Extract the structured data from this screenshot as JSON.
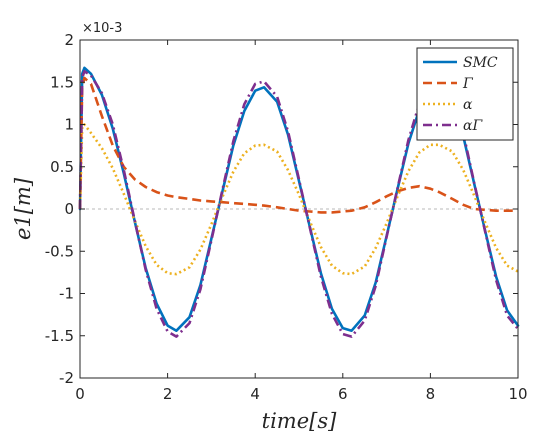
{
  "chart_data": {
    "type": "line",
    "xlabel": "time[s]",
    "ylabel": "e1[m]",
    "xlim": [
      0,
      10
    ],
    "ylim": [
      -2,
      2
    ],
    "y_scale_label": "×10-3",
    "x_ticks": [
      "0",
      "2",
      "4",
      "6",
      "8",
      "10"
    ],
    "y_ticks": [
      "-2",
      "-1.5",
      "-1",
      "-0.5",
      "0",
      "0.5",
      "1",
      "1.5",
      "2"
    ],
    "legend_position": "top-right",
    "reference_line": {
      "y": 0,
      "style": "dashed-gray"
    },
    "x": [
      0,
      0.05,
      0.1,
      0.25,
      0.5,
      0.75,
      1,
      1.25,
      1.5,
      1.75,
      2,
      2.2,
      2.5,
      2.75,
      3,
      3.25,
      3.5,
      3.75,
      4,
      4.2,
      4.5,
      4.75,
      5,
      5.25,
      5.5,
      5.75,
      6,
      6.2,
      6.5,
      6.75,
      7,
      7.25,
      7.5,
      7.75,
      8,
      8.2,
      8.5,
      8.75,
      9,
      9.25,
      9.5,
      9.75,
      10
    ],
    "series": [
      {
        "name": "SMC",
        "color": "#0072BD",
        "dash": "solid",
        "values": [
          0,
          1.6,
          1.67,
          1.6,
          1.35,
          0.95,
          0.42,
          -0.15,
          -0.7,
          -1.12,
          -1.38,
          -1.44,
          -1.28,
          -0.9,
          -0.35,
          0.2,
          0.75,
          1.16,
          1.4,
          1.44,
          1.27,
          0.88,
          0.33,
          -0.22,
          -0.76,
          -1.18,
          -1.41,
          -1.44,
          -1.26,
          -0.87,
          -0.32,
          0.24,
          0.78,
          1.18,
          1.41,
          1.44,
          1.25,
          0.86,
          0.3,
          -0.26,
          -0.8,
          -1.2,
          -1.38
        ]
      },
      {
        "name": "Γ",
        "color": "#D95319",
        "dash": "dashed",
        "values": [
          0,
          1.45,
          1.55,
          1.48,
          1.1,
          0.75,
          0.5,
          0.35,
          0.26,
          0.2,
          0.16,
          0.14,
          0.12,
          0.1,
          0.09,
          0.08,
          0.07,
          0.06,
          0.05,
          0.04,
          0.02,
          0.0,
          -0.02,
          -0.03,
          -0.04,
          -0.04,
          -0.03,
          -0.02,
          0.02,
          0.08,
          0.15,
          0.21,
          0.25,
          0.27,
          0.24,
          0.2,
          0.12,
          0.05,
          0.0,
          -0.01,
          -0.02,
          -0.02,
          -0.02
        ]
      },
      {
        "name": "α",
        "color": "#EDB120",
        "dash": "dotted",
        "values": [
          0,
          0.98,
          1.0,
          0.9,
          0.72,
          0.48,
          0.18,
          -0.14,
          -0.44,
          -0.66,
          -0.76,
          -0.77,
          -0.69,
          -0.48,
          -0.18,
          0.14,
          0.44,
          0.66,
          0.75,
          0.76,
          0.68,
          0.46,
          0.17,
          -0.15,
          -0.45,
          -0.67,
          -0.76,
          -0.77,
          -0.68,
          -0.46,
          -0.17,
          0.15,
          0.45,
          0.67,
          0.76,
          0.76,
          0.68,
          0.46,
          0.16,
          -0.16,
          -0.46,
          -0.67,
          -0.74
        ]
      },
      {
        "name": "αΓ",
        "color": "#7E2F8E",
        "dash": "dashdot",
        "values": [
          0,
          1.55,
          1.63,
          1.58,
          1.37,
          1.0,
          0.46,
          -0.14,
          -0.72,
          -1.18,
          -1.45,
          -1.51,
          -1.35,
          -0.95,
          -0.37,
          0.22,
          0.8,
          1.24,
          1.48,
          1.51,
          1.33,
          0.92,
          0.35,
          -0.23,
          -0.8,
          -1.24,
          -1.48,
          -1.51,
          -1.32,
          -0.91,
          -0.33,
          0.25,
          0.82,
          1.25,
          1.48,
          1.51,
          1.31,
          0.9,
          0.31,
          -0.27,
          -0.84,
          -1.26,
          -1.42
        ]
      }
    ]
  }
}
